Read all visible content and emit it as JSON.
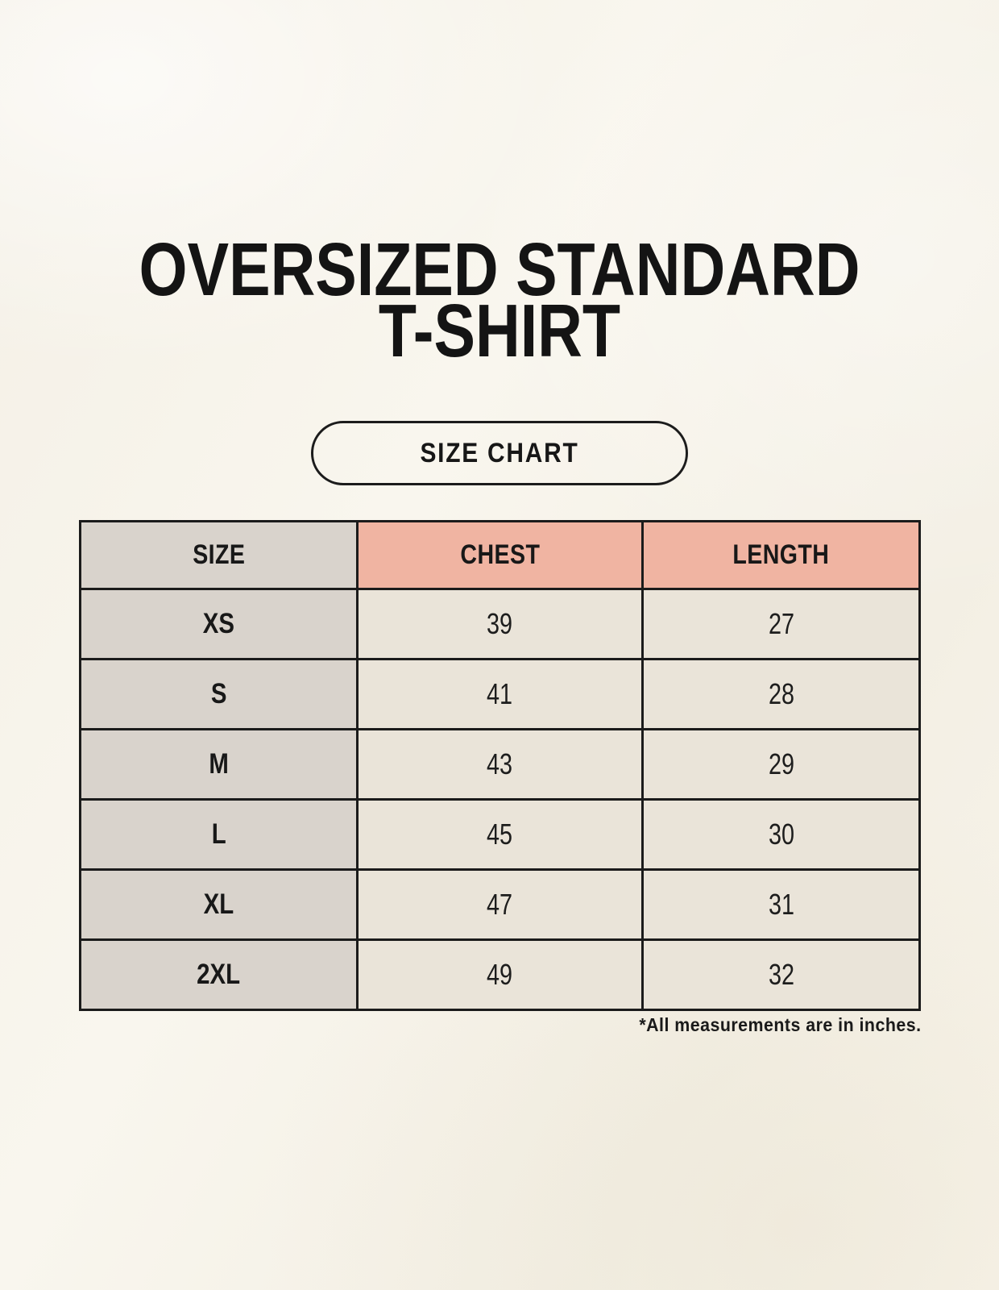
{
  "page": {
    "title_line1": "OVERSIZED STANDARD",
    "title_line2": "T-SHIRT",
    "badge_label": "SIZE CHART",
    "footnote": "*All measurements are in inches."
  },
  "table": {
    "headers": [
      "SIZE",
      "CHEST",
      "LENGTH"
    ],
    "rows": [
      {
        "size": "XS",
        "chest": "39",
        "length": "27"
      },
      {
        "size": "S",
        "chest": "41",
        "length": "28"
      },
      {
        "size": "M",
        "chest": "43",
        "length": "29"
      },
      {
        "size": "L",
        "chest": "45",
        "length": "30"
      },
      {
        "size": "XL",
        "chest": "47",
        "length": "31"
      },
      {
        "size": "2XL",
        "chest": "49",
        "length": "32"
      }
    ]
  },
  "colors": {
    "page_background": "#f6f2e9",
    "accent_salmon": "#f0b4a2",
    "size_column_gray": "#d9d3cc",
    "cell_cream": "#eae4d9",
    "border_black": "#1b1b1b"
  },
  "chart_data": {
    "type": "table",
    "title": "OVERSIZED STANDARD T-SHIRT",
    "subtitle": "SIZE CHART",
    "columns": [
      "SIZE",
      "CHEST",
      "LENGTH"
    ],
    "rows": [
      [
        "XS",
        39,
        27
      ],
      [
        "S",
        41,
        28
      ],
      [
        "M",
        43,
        29
      ],
      [
        "L",
        45,
        30
      ],
      [
        "XL",
        47,
        31
      ],
      [
        "2XL",
        49,
        32
      ]
    ],
    "units": "inches",
    "note": "*All measurements are in inches."
  }
}
